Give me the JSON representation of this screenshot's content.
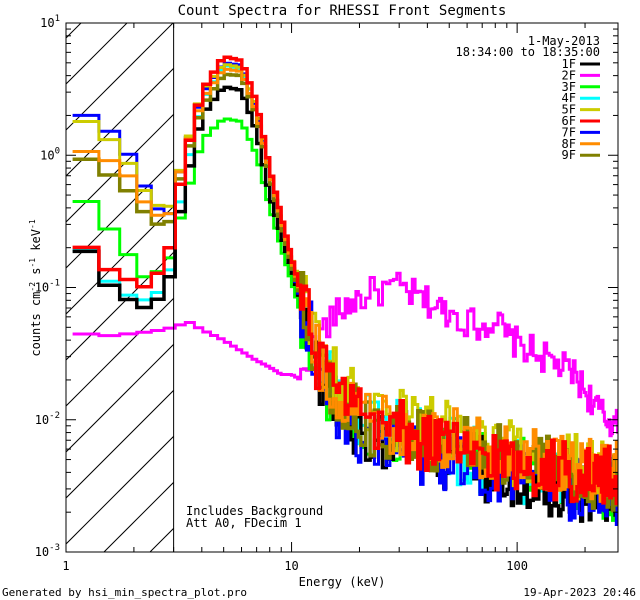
{
  "chart_data": {
    "type": "line",
    "title": "Count Spectra for RHESSI Front Segments",
    "xlabel": "Energy (keV)",
    "ylabel_parts": [
      "counts cm",
      "-2",
      " s",
      "-1",
      " keV",
      "-1"
    ],
    "xscale": "log",
    "yscale": "log",
    "xlim": [
      1,
      280
    ],
    "ylim": [
      0.001,
      10
    ],
    "x_ticks": [
      {
        "value": 1,
        "label": "1"
      },
      {
        "value": 10,
        "label": "10"
      },
      {
        "value": 100,
        "label": "100"
      }
    ],
    "y_ticks": [
      {
        "mant": "10",
        "exp": "-3",
        "value": 0.001
      },
      {
        "mant": "10",
        "exp": "-2",
        "value": 0.01
      },
      {
        "mant": "10",
        "exp": "-1",
        "value": 0.1
      },
      {
        "mant": "10",
        "exp": "0",
        "value": 1
      },
      {
        "mant": "10",
        "exp": "1",
        "value": 10
      }
    ],
    "hatch_region_keV": [
      1,
      3
    ],
    "date": "1-May-2013",
    "time_range": "18:34:00 to 18:35:00",
    "annotations": [
      "Includes Background",
      "Att A0, FDecim 1"
    ],
    "footer_left": "Generated by hsi_min_spectra_plot.pro",
    "footer_right": "19-Apr-2023 20:46",
    "series": [
      {
        "name": "1F",
        "color": "#000000",
        "stroke_width": 3.5,
        "jitter": 0.25,
        "points": [
          [
            1.15,
            0.23
          ],
          [
            1.4,
            0.12
          ],
          [
            1.8,
            0.085
          ],
          [
            2.2,
            0.07
          ],
          [
            2.8,
            0.09
          ],
          [
            3.3,
            0.5
          ],
          [
            4.0,
            2.0
          ],
          [
            5.0,
            3.3
          ],
          [
            6.0,
            3.1
          ],
          [
            7.0,
            1.5
          ],
          [
            8.0,
            0.5
          ],
          [
            9.0,
            0.25
          ],
          [
            10.0,
            0.14
          ],
          [
            11.5,
            0.06
          ],
          [
            13,
            0.025
          ],
          [
            16,
            0.012
          ],
          [
            20,
            0.009
          ],
          [
            30,
            0.007
          ],
          [
            50,
            0.005
          ],
          [
            80,
            0.004
          ],
          [
            120,
            0.0035
          ],
          [
            180,
            0.003
          ],
          [
            280,
            0.0028
          ]
        ]
      },
      {
        "name": "2F",
        "color": "#ff00ff",
        "stroke_width": 3,
        "jitter": 0.12,
        "points": [
          [
            1.15,
            0.045
          ],
          [
            1.5,
            0.043
          ],
          [
            2.0,
            0.045
          ],
          [
            2.5,
            0.047
          ],
          [
            3.0,
            0.05
          ],
          [
            3.5,
            0.055
          ],
          [
            4.0,
            0.048
          ],
          [
            5.0,
            0.04
          ],
          [
            6.0,
            0.033
          ],
          [
            7.0,
            0.028
          ],
          [
            8.0,
            0.025
          ],
          [
            9.0,
            0.022
          ],
          [
            10.0,
            0.022
          ],
          [
            11.0,
            0.02
          ],
          [
            12.0,
            0.03
          ],
          [
            14,
            0.05
          ],
          [
            17,
            0.07
          ],
          [
            20,
            0.085
          ],
          [
            25,
            0.095
          ],
          [
            30,
            0.1
          ],
          [
            36,
            0.085
          ],
          [
            45,
            0.07
          ],
          [
            55,
            0.06
          ],
          [
            70,
            0.05
          ],
          [
            80,
            0.06
          ],
          [
            90,
            0.042
          ],
          [
            110,
            0.035
          ],
          [
            140,
            0.028
          ],
          [
            180,
            0.022
          ],
          [
            220,
            0.013
          ],
          [
            250,
            0.01
          ],
          [
            280,
            0.009
          ]
        ]
      },
      {
        "name": "3F",
        "color": "#00ff00",
        "stroke_width": 3,
        "jitter": 0.25,
        "points": [
          [
            1.15,
            0.5
          ],
          [
            1.4,
            0.35
          ],
          [
            1.8,
            0.2
          ],
          [
            2.2,
            0.12
          ],
          [
            2.8,
            0.14
          ],
          [
            3.3,
            0.4
          ],
          [
            4.0,
            1.3
          ],
          [
            5.0,
            1.9
          ],
          [
            6.0,
            1.8
          ],
          [
            7.0,
            1.0
          ],
          [
            8.0,
            0.4
          ],
          [
            9.0,
            0.2
          ],
          [
            10.0,
            0.11
          ],
          [
            11.5,
            0.05
          ],
          [
            13,
            0.025
          ],
          [
            16,
            0.013
          ],
          [
            20,
            0.009
          ],
          [
            30,
            0.008
          ],
          [
            50,
            0.006
          ],
          [
            80,
            0.0045
          ],
          [
            120,
            0.004
          ],
          [
            180,
            0.0035
          ],
          [
            280,
            0.003
          ]
        ]
      },
      {
        "name": "4F",
        "color": "#00ffff",
        "stroke_width": 3,
        "jitter": 0.25,
        "points": [
          [
            1.15,
            0.23
          ],
          [
            1.4,
            0.13
          ],
          [
            1.8,
            0.09
          ],
          [
            2.2,
            0.08
          ],
          [
            2.8,
            0.1
          ],
          [
            3.3,
            0.6
          ],
          [
            4.0,
            2.5
          ],
          [
            5.0,
            4.8
          ],
          [
            6.0,
            4.5
          ],
          [
            7.0,
            2.0
          ],
          [
            8.0,
            0.7
          ],
          [
            9.0,
            0.3
          ],
          [
            10.0,
            0.15
          ],
          [
            11.5,
            0.07
          ],
          [
            13,
            0.03
          ],
          [
            16,
            0.015
          ],
          [
            20,
            0.01
          ],
          [
            30,
            0.008
          ],
          [
            50,
            0.006
          ],
          [
            80,
            0.0045
          ],
          [
            120,
            0.004
          ],
          [
            180,
            0.0035
          ],
          [
            280,
            0.003
          ]
        ]
      },
      {
        "name": "5F",
        "color": "#cccc00",
        "stroke_width": 3,
        "jitter": 0.25,
        "points": [
          [
            1.15,
            1.9
          ],
          [
            1.4,
            1.6
          ],
          [
            1.8,
            1.0
          ],
          [
            2.2,
            0.55
          ],
          [
            2.8,
            0.35
          ],
          [
            3.3,
            0.9
          ],
          [
            4.0,
            3.0
          ],
          [
            5.0,
            4.9
          ],
          [
            6.0,
            4.6
          ],
          [
            7.0,
            2.3
          ],
          [
            8.0,
            0.8
          ],
          [
            9.0,
            0.35
          ],
          [
            10.0,
            0.17
          ],
          [
            11.5,
            0.08
          ],
          [
            13,
            0.035
          ],
          [
            16,
            0.018
          ],
          [
            20,
            0.012
          ],
          [
            30,
            0.01
          ],
          [
            50,
            0.008
          ],
          [
            80,
            0.006
          ],
          [
            120,
            0.005
          ],
          [
            180,
            0.0045
          ],
          [
            280,
            0.004
          ]
        ]
      },
      {
        "name": "6F",
        "color": "#ff0000",
        "stroke_width": 3.5,
        "jitter": 0.25,
        "points": [
          [
            1.15,
            0.23
          ],
          [
            1.4,
            0.15
          ],
          [
            1.8,
            0.12
          ],
          [
            2.2,
            0.1
          ],
          [
            2.8,
            0.15
          ],
          [
            3.3,
            0.8
          ],
          [
            4.0,
            3.0
          ],
          [
            5.0,
            5.6
          ],
          [
            6.0,
            5.2
          ],
          [
            7.0,
            2.5
          ],
          [
            8.0,
            0.8
          ],
          [
            9.0,
            0.35
          ],
          [
            10.0,
            0.17
          ],
          [
            11.5,
            0.07
          ],
          [
            13,
            0.03
          ],
          [
            16,
            0.015
          ],
          [
            20,
            0.01
          ],
          [
            30,
            0.008
          ],
          [
            50,
            0.006
          ],
          [
            80,
            0.005
          ],
          [
            120,
            0.0045
          ],
          [
            180,
            0.004
          ],
          [
            280,
            0.0035
          ]
        ]
      },
      {
        "name": "7F",
        "color": "#0000ff",
        "stroke_width": 3,
        "jitter": 0.25,
        "points": [
          [
            1.15,
            2.1
          ],
          [
            1.4,
            1.8
          ],
          [
            1.8,
            1.2
          ],
          [
            2.2,
            0.6
          ],
          [
            2.8,
            0.3
          ],
          [
            3.3,
            0.9
          ],
          [
            4.0,
            2.8
          ],
          [
            5.0,
            5.0
          ],
          [
            6.0,
            4.8
          ],
          [
            7.0,
            2.2
          ],
          [
            8.0,
            0.8
          ],
          [
            9.0,
            0.32
          ],
          [
            10.0,
            0.15
          ],
          [
            11.5,
            0.06
          ],
          [
            13,
            0.03
          ],
          [
            16,
            0.012
          ],
          [
            20,
            0.008
          ],
          [
            30,
            0.006
          ],
          [
            50,
            0.005
          ],
          [
            80,
            0.004
          ],
          [
            120,
            0.0035
          ],
          [
            180,
            0.003
          ],
          [
            280,
            0.0028
          ]
        ]
      },
      {
        "name": "8F",
        "color": "#ff8c00",
        "stroke_width": 3,
        "jitter": 0.25,
        "points": [
          [
            1.15,
            1.1
          ],
          [
            1.4,
            1.0
          ],
          [
            1.8,
            0.8
          ],
          [
            2.2,
            0.45
          ],
          [
            2.8,
            0.3
          ],
          [
            3.3,
            0.9
          ],
          [
            4.0,
            2.6
          ],
          [
            5.0,
            4.5
          ],
          [
            6.0,
            4.3
          ],
          [
            7.0,
            2.1
          ],
          [
            8.0,
            0.75
          ],
          [
            9.0,
            0.33
          ],
          [
            10.0,
            0.16
          ],
          [
            11.5,
            0.07
          ],
          [
            13,
            0.03
          ],
          [
            16,
            0.016
          ],
          [
            20,
            0.011
          ],
          [
            30,
            0.009
          ],
          [
            50,
            0.007
          ],
          [
            80,
            0.006
          ],
          [
            120,
            0.005
          ],
          [
            180,
            0.0045
          ],
          [
            280,
            0.004
          ]
        ]
      },
      {
        "name": "9F",
        "color": "#808000",
        "stroke_width": 3.5,
        "jitter": 0.25,
        "points": [
          [
            1.15,
            1.0
          ],
          [
            1.4,
            0.8
          ],
          [
            1.8,
            0.6
          ],
          [
            2.2,
            0.38
          ],
          [
            2.8,
            0.26
          ],
          [
            3.3,
            0.8
          ],
          [
            4.0,
            2.3
          ],
          [
            5.0,
            4.1
          ],
          [
            6.0,
            4.0
          ],
          [
            7.0,
            2.0
          ],
          [
            8.0,
            0.7
          ],
          [
            9.0,
            0.3
          ],
          [
            10.0,
            0.15
          ],
          [
            11.5,
            0.065
          ],
          [
            13,
            0.03
          ],
          [
            16,
            0.015
          ],
          [
            20,
            0.01
          ],
          [
            30,
            0.008
          ],
          [
            50,
            0.0065
          ],
          [
            80,
            0.0055
          ],
          [
            120,
            0.0045
          ],
          [
            180,
            0.004
          ],
          [
            280,
            0.0035
          ]
        ]
      }
    ]
  }
}
